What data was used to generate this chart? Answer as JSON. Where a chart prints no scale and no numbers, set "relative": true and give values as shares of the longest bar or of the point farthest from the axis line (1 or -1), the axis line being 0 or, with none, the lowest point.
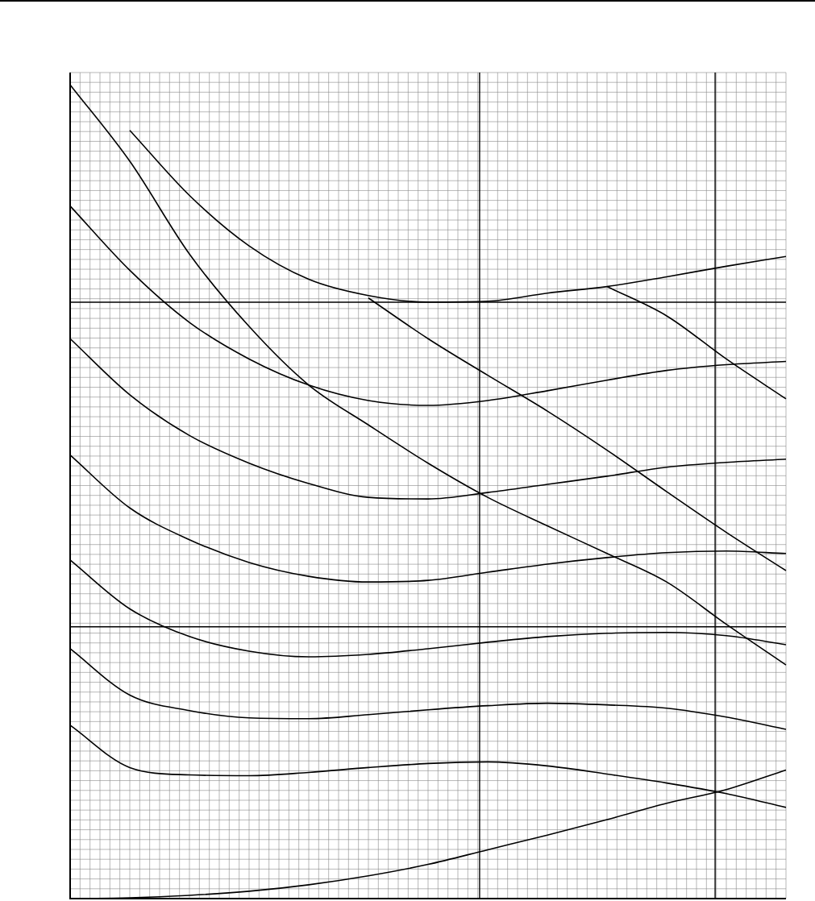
{
  "chart_data": {
    "type": "line",
    "relative": true,
    "grid": true,
    "legend": false,
    "categories": [
      null,
      null,
      null,
      null,
      null,
      null,
      null,
      null,
      null,
      null,
      null,
      null,
      null
    ],
    "series": [
      {
        "color": "#000000",
        "values": [
          null,
          0.944,
          0.864,
          0.802,
          0.761,
          0.741,
          0.733,
          0.734,
          0.744,
          0.752,
          0.764,
          0.777,
          0.789
        ]
      },
      {
        "color": "#000000",
        "values": [
          1,
          0.906,
          0.792,
          0.703,
          0.631,
          0.582,
          0.535,
          0.493,
          0.458,
          0.424,
          0.389,
          0.337,
          0.287
        ]
      },
      {
        "color": "#000000",
        "values": [
          0.851,
          0.772,
          0.708,
          0.663,
          0.631,
          0.612,
          0.606,
          0.612,
          0.624,
          0.637,
          0.649,
          0.656,
          0.66
        ]
      },
      {
        "color": "#000000",
        "values": [
          0.688,
          0.619,
          0.569,
          0.535,
          0.51,
          0.493,
          0.491,
          0.499,
          0.509,
          0.519,
          0.53,
          0.536,
          0.54
        ]
      },
      {
        "color": "#000000",
        "values": [
          0.545,
          0.48,
          0.441,
          0.413,
          0.396,
          0.389,
          0.391,
          0.401,
          0.411,
          0.419,
          0.425,
          0.427,
          0.424
        ]
      },
      {
        "color": "#000000",
        "values": [
          0.416,
          0.356,
          0.322,
          0.304,
          0.297,
          0.3,
          0.307,
          0.315,
          0.322,
          0.326,
          0.327,
          0.323,
          0.312
        ]
      },
      {
        "color": "#000000",
        "values": [
          0.307,
          0.25,
          0.231,
          0.222,
          0.221,
          0.226,
          0.232,
          0.237,
          0.24,
          0.238,
          0.234,
          0.223,
          0.208
        ]
      },
      {
        "color": "#000000",
        "values": [
          0.213,
          0.161,
          0.152,
          0.151,
          0.155,
          0.161,
          0.166,
          0.168,
          0.163,
          0.153,
          0.142,
          0.129,
          0.112
        ]
      },
      {
        "color": "#000000",
        "values": [
          0,
          0.001,
          0.004,
          0.009,
          0.017,
          0.028,
          0.042,
          0.06,
          0.078,
          0.097,
          0.117,
          0.134,
          0.158
        ]
      },
      {
        "color": "#000000",
        "values": [
          null,
          null,
          null,
          null,
          null,
          0.738,
          0.688,
          0.643,
          0.599,
          0.551,
          0.5,
          0.45,
          0.403
        ]
      },
      {
        "color": "#000000",
        "values": [
          null,
          null,
          null,
          null,
          null,
          null,
          null,
          null,
          null,
          0.752,
          0.716,
          0.663,
          0.614
        ]
      }
    ]
  }
}
